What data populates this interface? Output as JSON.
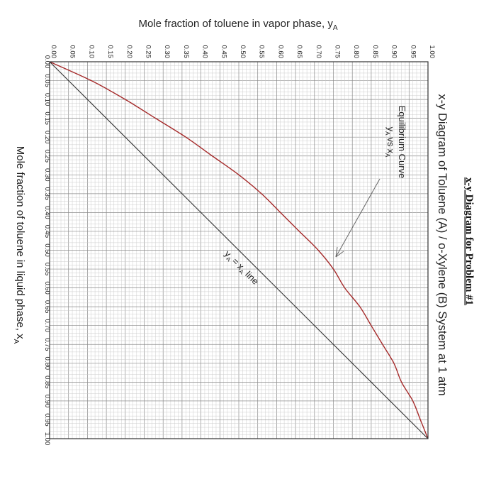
{
  "chart_data": {
    "type": "line",
    "heading": "x-y Diagram for Problem #1",
    "title": "x-y Diagram of Toluene (A) / o-Xylene (B) System at 1 atm",
    "xlabel": {
      "main": "Mole fraction of toluene in liquid phase, x",
      "sub": "A"
    },
    "ylabel": {
      "main": "Mole fraction of toluene in vapor phase, y",
      "sub": "A"
    },
    "xlim": [
      0,
      1
    ],
    "ylim": [
      0,
      1
    ],
    "x_ticks": [
      "0.00",
      "0.05",
      "0.10",
      "0.15",
      "0.20",
      "0.25",
      "0.30",
      "0.35",
      "0.40",
      "0.45",
      "0.50",
      "0.55",
      "0.60",
      "0.65",
      "0.70",
      "0.75",
      "0.80",
      "0.85",
      "0.90",
      "0.95",
      "1.00"
    ],
    "y_ticks": [
      "0.00",
      "0.05",
      "0.10",
      "0.15",
      "0.20",
      "0.25",
      "0.30",
      "0.35",
      "0.40",
      "0.45",
      "0.50",
      "0.55",
      "0.60",
      "0.65",
      "0.70",
      "0.75",
      "0.80",
      "0.85",
      "0.90",
      "0.95",
      "1.00"
    ],
    "grid": true,
    "series": [
      {
        "name": "Equilibrium Curve",
        "color": "#a52a2a",
        "x": [
          0,
          0.05,
          0.1,
          0.15,
          0.2,
          0.25,
          0.3,
          0.35,
          0.4,
          0.45,
          0.5,
          0.55,
          0.6,
          0.65,
          0.7,
          0.75,
          0.8,
          0.85,
          0.9,
          0.95,
          1.0
        ],
        "y": [
          0,
          0.11,
          0.2,
          0.28,
          0.36,
          0.43,
          0.5,
          0.56,
          0.61,
          0.66,
          0.71,
          0.75,
          0.78,
          0.82,
          0.85,
          0.88,
          0.91,
          0.93,
          0.96,
          0.98,
          1.0
        ]
      },
      {
        "name": "y = x line",
        "color": "#333333",
        "x": [
          0,
          1
        ],
        "y": [
          0,
          1
        ]
      }
    ],
    "annotations": {
      "equilibrium_label": "Equilibrium Curve",
      "equilibrium_sub_y": "y",
      "equilibrium_sub_A1": "A",
      "equilibrium_vs": "vs",
      "equilibrium_sub_x": "x",
      "equilibrium_sub_A2": "A",
      "diag_y": "y",
      "diag_A1": "A",
      "diag_eq": "=",
      "diag_x": "x",
      "diag_A2": "A",
      "diag_line": "line"
    }
  }
}
